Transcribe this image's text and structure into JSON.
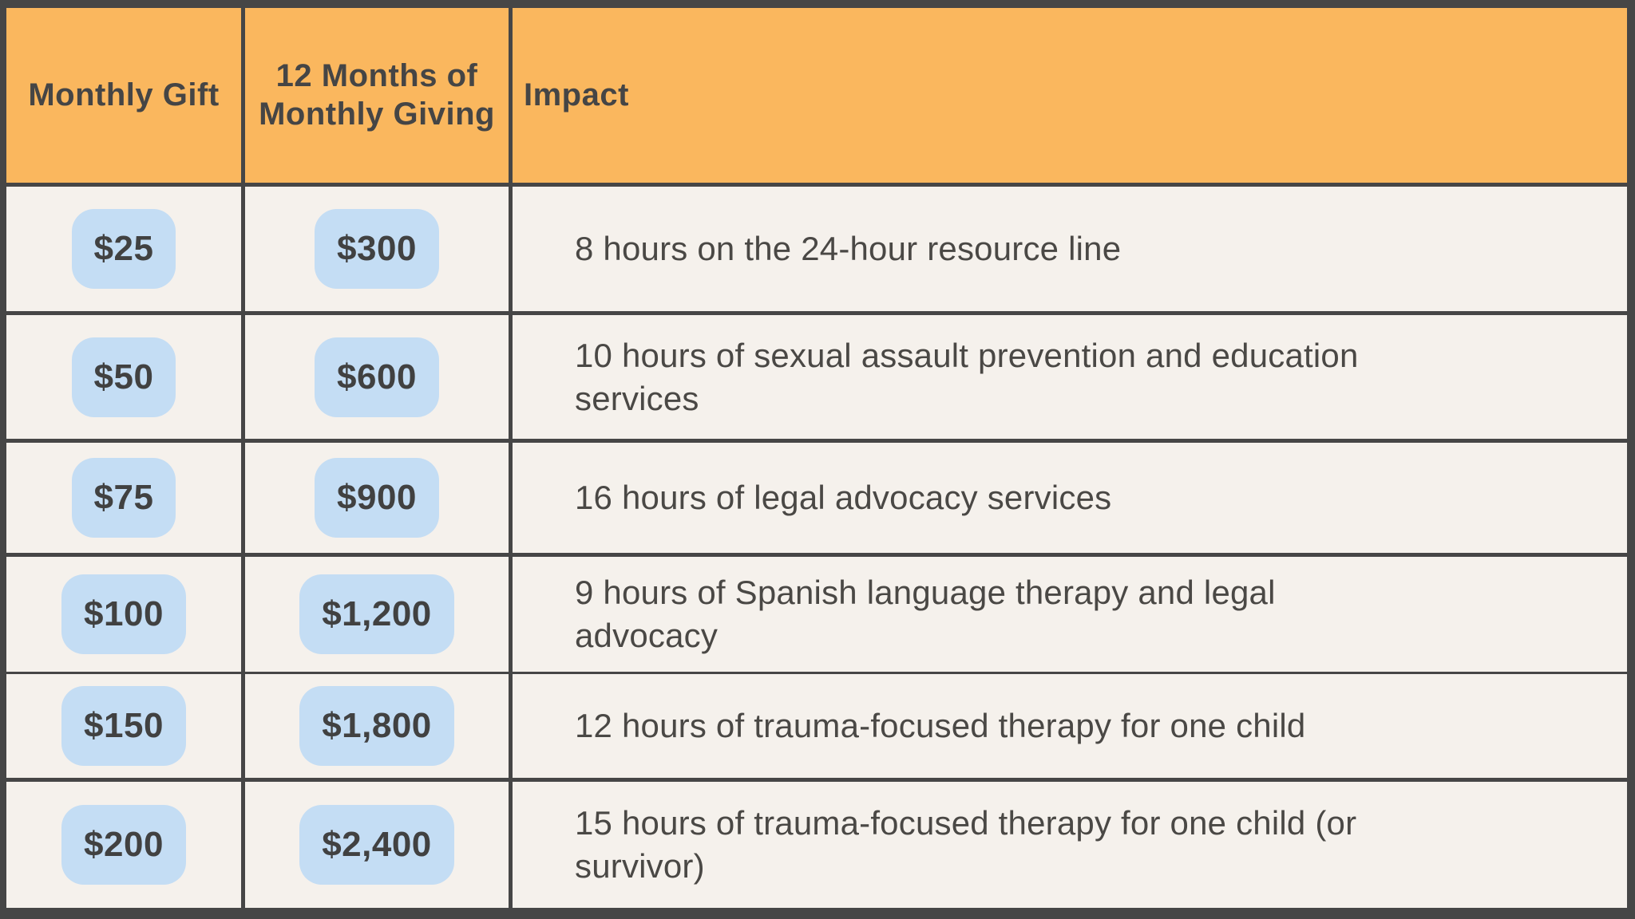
{
  "colors": {
    "header_bg": "#FAB75E",
    "cell_bg": "#F5F1EC",
    "pill_bg": "#C4DDF4",
    "border": "#464646",
    "text": "#454545"
  },
  "table": {
    "headers": {
      "monthly_gift": "Monthly Gift",
      "annual_total": "12 Months of Monthly Giving",
      "impact": "Impact"
    },
    "rows": [
      {
        "monthly_gift": "$25",
        "annual_total": "$300",
        "impact": "8 hours on the 24-hour resource line"
      },
      {
        "monthly_gift": "$50",
        "annual_total": "$600",
        "impact": "10 hours of sexual assault prevention and education\nservices"
      },
      {
        "monthly_gift": "$75",
        "annual_total": "$900",
        "impact": "16 hours of legal advocacy services"
      },
      {
        "monthly_gift": "$100",
        "annual_total": "$1,200",
        "impact": "9 hours of Spanish language therapy and legal\nadvocacy"
      },
      {
        "monthly_gift": "$150",
        "annual_total": "$1,800",
        "impact": "12 hours of trauma-focused therapy for one child"
      },
      {
        "monthly_gift": "$200",
        "annual_total": "$2,400",
        "impact": "15 hours of trauma-focused therapy for one child (or\nsurvivor)"
      }
    ]
  },
  "chart_data": {
    "type": "table",
    "title": "",
    "columns": [
      "Monthly Gift",
      "12 Months of Monthly Giving",
      "Impact"
    ],
    "rows": [
      [
        "$25",
        "$300",
        "8 hours on the 24-hour resource line"
      ],
      [
        "$50",
        "$600",
        "10 hours of sexual assault prevention and education services"
      ],
      [
        "$75",
        "$900",
        "16 hours of legal advocacy services"
      ],
      [
        "$100",
        "$1,200",
        "9 hours of Spanish language therapy and legal advocacy"
      ],
      [
        "$150",
        "$1,800",
        "12 hours of trauma-focused therapy for one child"
      ],
      [
        "$200",
        "$2,400",
        "15 hours of trauma-focused therapy for one child (or survivor)"
      ]
    ],
    "monthly_gift_values": [
      25,
      50,
      75,
      100,
      150,
      200
    ],
    "annual_total_values": [
      300,
      600,
      900,
      1200,
      1800,
      2400
    ],
    "impact_hours": [
      8,
      10,
      16,
      9,
      12,
      15
    ]
  }
}
